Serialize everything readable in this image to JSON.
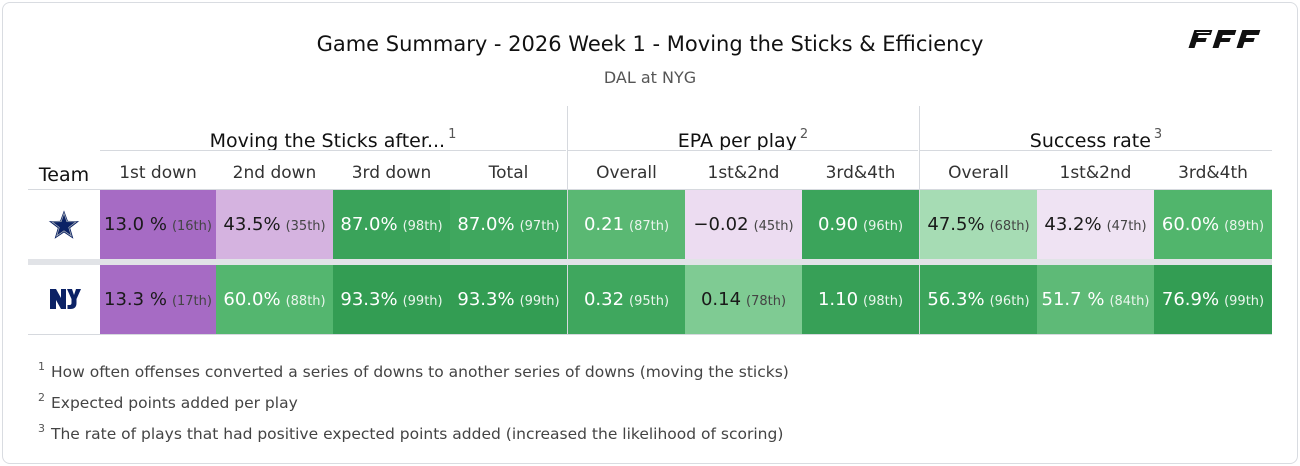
{
  "header": {
    "title": "Game Summary - 2026 Week 1 - Moving the Sticks & Efficiency",
    "subtitle": "DAL at NYG",
    "logo_text": "PFF"
  },
  "table": {
    "team_header": "Team",
    "groups": [
      {
        "label": "Moving the Sticks after...",
        "note": "1",
        "columns": [
          "1st down",
          "2nd down",
          "3rd down",
          "Total"
        ]
      },
      {
        "label": "EPA per play",
        "note": "2",
        "columns": [
          "Overall",
          "1st&2nd",
          "3rd&4th"
        ]
      },
      {
        "label": "Success rate",
        "note": "3",
        "columns": [
          "Overall",
          "1st&2nd",
          "3rd&4th"
        ]
      }
    ],
    "rows": [
      {
        "team": "DAL",
        "icon": "dallas-star-icon",
        "cells": [
          {
            "value": "13.0 %",
            "rank": "(16th)",
            "color": "#a66bc4",
            "dark": false
          },
          {
            "value": "43.5%",
            "rank": "(35th)",
            "color": "#d5b3e0",
            "dark": false
          },
          {
            "value": "87.0%",
            "rank": "(98th)",
            "color": "#3aa35a",
            "dark": true
          },
          {
            "value": "87.0%",
            "rank": "(97th)",
            "color": "#3fa75e",
            "dark": true
          },
          {
            "value": "0.21",
            "rank": "(87th)",
            "color": "#5ab873",
            "dark": true
          },
          {
            "value": "−0.02",
            "rank": "(45th)",
            "color": "#ecdcf1",
            "dark": false
          },
          {
            "value": "0.90",
            "rank": "(96th)",
            "color": "#3ba45b",
            "dark": true
          },
          {
            "value": "47.5%",
            "rank": "(68th)",
            "color": "#a6dcb4",
            "dark": false
          },
          {
            "value": "43.2%",
            "rank": "(47th)",
            "color": "#efe3f3",
            "dark": false
          },
          {
            "value": "60.0%",
            "rank": "(89th)",
            "color": "#51b56c",
            "dark": true
          }
        ]
      },
      {
        "team": "NYG",
        "icon": "giants-ny-icon",
        "cells": [
          {
            "value": "13.3 %",
            "rank": "(17th)",
            "color": "#a66bc4",
            "dark": false
          },
          {
            "value": "60.0%",
            "rank": "(88th)",
            "color": "#54b66f",
            "dark": true
          },
          {
            "value": "93.3%",
            "rank": "(99th)",
            "color": "#339d53",
            "dark": true
          },
          {
            "value": "93.3%",
            "rank": "(99th)",
            "color": "#339d53",
            "dark": true
          },
          {
            "value": "0.32",
            "rank": "(95th)",
            "color": "#3fa75e",
            "dark": true
          },
          {
            "value": "0.14",
            "rank": "(78th)",
            "color": "#7fcb93",
            "dark": false
          },
          {
            "value": "1.10",
            "rank": "(98th)",
            "color": "#37a057",
            "dark": true
          },
          {
            "value": "56.3%",
            "rank": "(96th)",
            "color": "#3ba45b",
            "dark": true
          },
          {
            "value": "51.7 %",
            "rank": "(84th)",
            "color": "#5eba77",
            "dark": true
          },
          {
            "value": "76.9%",
            "rank": "(99th)",
            "color": "#339d53",
            "dark": true
          }
        ]
      }
    ]
  },
  "footnotes": [
    {
      "mark": "1",
      "text": "How often offenses converted a series of downs to another series of downs (moving the sticks)"
    },
    {
      "mark": "2",
      "text": "Expected points added per play"
    },
    {
      "mark": "3",
      "text": "The rate of plays that had positive expected points added (increased the likelihood of scoring)"
    }
  ]
}
